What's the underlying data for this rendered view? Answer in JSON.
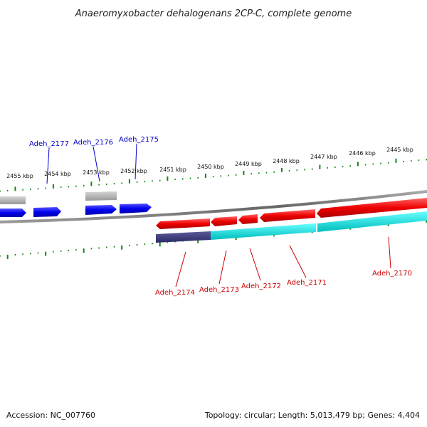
{
  "title": "Anaeromyxobacter dehalogenans 2CP-C, complete genome",
  "footer": {
    "accession": "Accession: NC_007760",
    "summary": "Topology: circular; Length: 5,013,479 bp; Genes: 4,404"
  },
  "scale": {
    "unit": "kbp",
    "ticks": [
      "2455 kbp",
      "2454 kbp",
      "2453 kbp",
      "2452 kbp",
      "2451 kbp",
      "2450 kbp",
      "2449 kbp",
      "2448 kbp",
      "2447 kbp",
      "2446 kbp",
      "2445 kbp"
    ]
  },
  "genes": [
    {
      "label": "Adeh_2177",
      "strand": "forward",
      "color": "#0000cc"
    },
    {
      "label": "Adeh_2176",
      "strand": "forward",
      "color": "#0000cc"
    },
    {
      "label": "Adeh_2175",
      "strand": "forward",
      "color": "#0000cc"
    },
    {
      "label": "Adeh_2174",
      "strand": "reverse",
      "color": "#cc0000"
    },
    {
      "label": "Adeh_2173",
      "strand": "reverse",
      "color": "#cc0000"
    },
    {
      "label": "Adeh_2172",
      "strand": "reverse",
      "color": "#cc0000"
    },
    {
      "label": "Adeh_2171",
      "strand": "reverse",
      "color": "#cc0000"
    },
    {
      "label": "Adeh_2170",
      "strand": "reverse",
      "color": "#cc0000"
    }
  ],
  "colors": {
    "forward_cds": "#0000ee",
    "reverse_cds": "#ee0000",
    "gene_feature": "#aaaaaa",
    "cog_track": "#00e5e5",
    "cog_track_dark": "#3a3a7a",
    "backbone": "#808080",
    "tick": "#118811"
  }
}
